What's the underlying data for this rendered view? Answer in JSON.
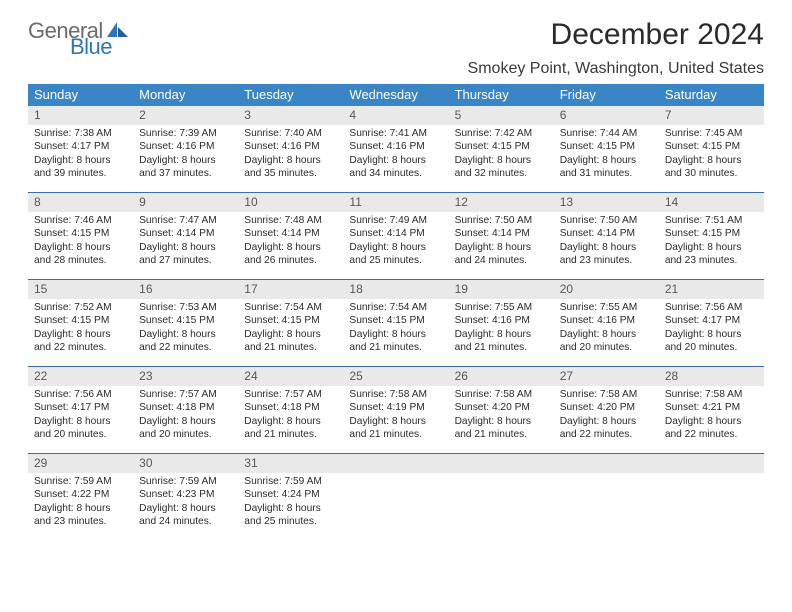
{
  "logo": {
    "word1": "General",
    "word2": "Blue"
  },
  "title": "December 2024",
  "location": "Smokey Point, Washington, United States",
  "colors": {
    "header_bg": "#3a85c6",
    "header_text": "#ffffff",
    "daynum_bg": "#e9e9ea",
    "row_divider": "#3a6ea5",
    "logo_blue": "#2f76b8",
    "logo_gray": "#6b6b6b"
  },
  "day_names": [
    "Sunday",
    "Monday",
    "Tuesday",
    "Wednesday",
    "Thursday",
    "Friday",
    "Saturday"
  ],
  "weeks": [
    [
      {
        "n": "1",
        "sr": "Sunrise: 7:38 AM",
        "ss": "Sunset: 4:17 PM",
        "d1": "Daylight: 8 hours",
        "d2": "and 39 minutes."
      },
      {
        "n": "2",
        "sr": "Sunrise: 7:39 AM",
        "ss": "Sunset: 4:16 PM",
        "d1": "Daylight: 8 hours",
        "d2": "and 37 minutes."
      },
      {
        "n": "3",
        "sr": "Sunrise: 7:40 AM",
        "ss": "Sunset: 4:16 PM",
        "d1": "Daylight: 8 hours",
        "d2": "and 35 minutes."
      },
      {
        "n": "4",
        "sr": "Sunrise: 7:41 AM",
        "ss": "Sunset: 4:16 PM",
        "d1": "Daylight: 8 hours",
        "d2": "and 34 minutes."
      },
      {
        "n": "5",
        "sr": "Sunrise: 7:42 AM",
        "ss": "Sunset: 4:15 PM",
        "d1": "Daylight: 8 hours",
        "d2": "and 32 minutes."
      },
      {
        "n": "6",
        "sr": "Sunrise: 7:44 AM",
        "ss": "Sunset: 4:15 PM",
        "d1": "Daylight: 8 hours",
        "d2": "and 31 minutes."
      },
      {
        "n": "7",
        "sr": "Sunrise: 7:45 AM",
        "ss": "Sunset: 4:15 PM",
        "d1": "Daylight: 8 hours",
        "d2": "and 30 minutes."
      }
    ],
    [
      {
        "n": "8",
        "sr": "Sunrise: 7:46 AM",
        "ss": "Sunset: 4:15 PM",
        "d1": "Daylight: 8 hours",
        "d2": "and 28 minutes."
      },
      {
        "n": "9",
        "sr": "Sunrise: 7:47 AM",
        "ss": "Sunset: 4:14 PM",
        "d1": "Daylight: 8 hours",
        "d2": "and 27 minutes."
      },
      {
        "n": "10",
        "sr": "Sunrise: 7:48 AM",
        "ss": "Sunset: 4:14 PM",
        "d1": "Daylight: 8 hours",
        "d2": "and 26 minutes."
      },
      {
        "n": "11",
        "sr": "Sunrise: 7:49 AM",
        "ss": "Sunset: 4:14 PM",
        "d1": "Daylight: 8 hours",
        "d2": "and 25 minutes."
      },
      {
        "n": "12",
        "sr": "Sunrise: 7:50 AM",
        "ss": "Sunset: 4:14 PM",
        "d1": "Daylight: 8 hours",
        "d2": "and 24 minutes."
      },
      {
        "n": "13",
        "sr": "Sunrise: 7:50 AM",
        "ss": "Sunset: 4:14 PM",
        "d1": "Daylight: 8 hours",
        "d2": "and 23 minutes."
      },
      {
        "n": "14",
        "sr": "Sunrise: 7:51 AM",
        "ss": "Sunset: 4:15 PM",
        "d1": "Daylight: 8 hours",
        "d2": "and 23 minutes."
      }
    ],
    [
      {
        "n": "15",
        "sr": "Sunrise: 7:52 AM",
        "ss": "Sunset: 4:15 PM",
        "d1": "Daylight: 8 hours",
        "d2": "and 22 minutes."
      },
      {
        "n": "16",
        "sr": "Sunrise: 7:53 AM",
        "ss": "Sunset: 4:15 PM",
        "d1": "Daylight: 8 hours",
        "d2": "and 22 minutes."
      },
      {
        "n": "17",
        "sr": "Sunrise: 7:54 AM",
        "ss": "Sunset: 4:15 PM",
        "d1": "Daylight: 8 hours",
        "d2": "and 21 minutes."
      },
      {
        "n": "18",
        "sr": "Sunrise: 7:54 AM",
        "ss": "Sunset: 4:15 PM",
        "d1": "Daylight: 8 hours",
        "d2": "and 21 minutes."
      },
      {
        "n": "19",
        "sr": "Sunrise: 7:55 AM",
        "ss": "Sunset: 4:16 PM",
        "d1": "Daylight: 8 hours",
        "d2": "and 21 minutes."
      },
      {
        "n": "20",
        "sr": "Sunrise: 7:55 AM",
        "ss": "Sunset: 4:16 PM",
        "d1": "Daylight: 8 hours",
        "d2": "and 20 minutes."
      },
      {
        "n": "21",
        "sr": "Sunrise: 7:56 AM",
        "ss": "Sunset: 4:17 PM",
        "d1": "Daylight: 8 hours",
        "d2": "and 20 minutes."
      }
    ],
    [
      {
        "n": "22",
        "sr": "Sunrise: 7:56 AM",
        "ss": "Sunset: 4:17 PM",
        "d1": "Daylight: 8 hours",
        "d2": "and 20 minutes."
      },
      {
        "n": "23",
        "sr": "Sunrise: 7:57 AM",
        "ss": "Sunset: 4:18 PM",
        "d1": "Daylight: 8 hours",
        "d2": "and 20 minutes."
      },
      {
        "n": "24",
        "sr": "Sunrise: 7:57 AM",
        "ss": "Sunset: 4:18 PM",
        "d1": "Daylight: 8 hours",
        "d2": "and 21 minutes."
      },
      {
        "n": "25",
        "sr": "Sunrise: 7:58 AM",
        "ss": "Sunset: 4:19 PM",
        "d1": "Daylight: 8 hours",
        "d2": "and 21 minutes."
      },
      {
        "n": "26",
        "sr": "Sunrise: 7:58 AM",
        "ss": "Sunset: 4:20 PM",
        "d1": "Daylight: 8 hours",
        "d2": "and 21 minutes."
      },
      {
        "n": "27",
        "sr": "Sunrise: 7:58 AM",
        "ss": "Sunset: 4:20 PM",
        "d1": "Daylight: 8 hours",
        "d2": "and 22 minutes."
      },
      {
        "n": "28",
        "sr": "Sunrise: 7:58 AM",
        "ss": "Sunset: 4:21 PM",
        "d1": "Daylight: 8 hours",
        "d2": "and 22 minutes."
      }
    ],
    [
      {
        "n": "29",
        "sr": "Sunrise: 7:59 AM",
        "ss": "Sunset: 4:22 PM",
        "d1": "Daylight: 8 hours",
        "d2": "and 23 minutes."
      },
      {
        "n": "30",
        "sr": "Sunrise: 7:59 AM",
        "ss": "Sunset: 4:23 PM",
        "d1": "Daylight: 8 hours",
        "d2": "and 24 minutes."
      },
      {
        "n": "31",
        "sr": "Sunrise: 7:59 AM",
        "ss": "Sunset: 4:24 PM",
        "d1": "Daylight: 8 hours",
        "d2": "and 25 minutes."
      },
      {
        "empty": true
      },
      {
        "empty": true
      },
      {
        "empty": true
      },
      {
        "empty": true
      }
    ]
  ]
}
